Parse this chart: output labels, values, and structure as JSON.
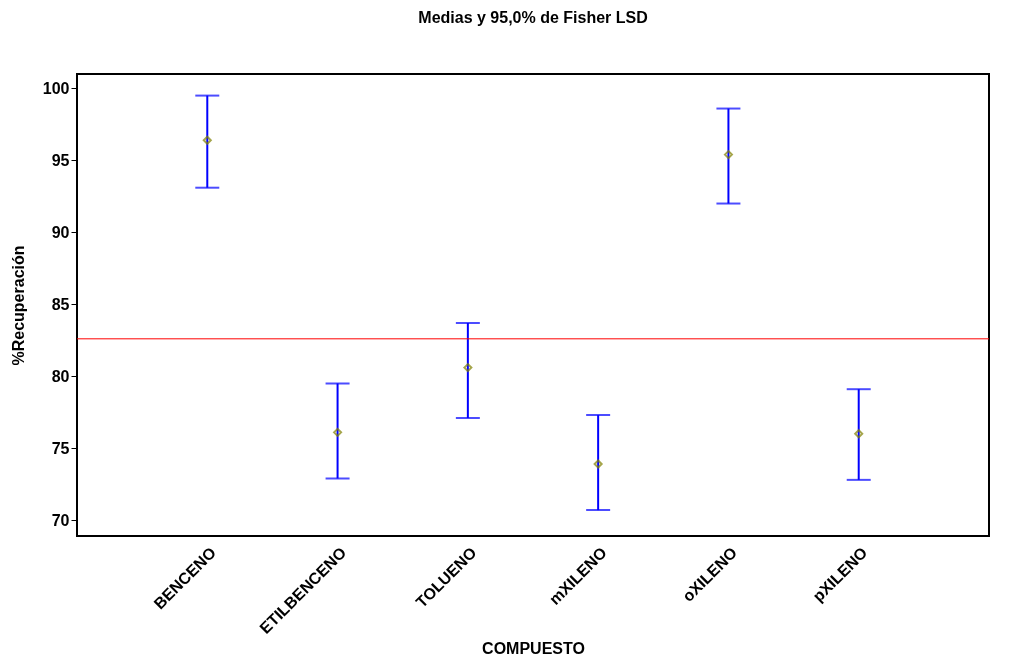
{
  "chart_data": {
    "type": "scatter",
    "title": "Medias y 95,0% de Fisher LSD",
    "xlabel": "COMPUESTO",
    "ylabel": "%Recuperación",
    "categories": [
      "BENCENO",
      "ETILBENCENO",
      "TOLUENO",
      "mXILENO",
      "oXILENO",
      "pXILENO"
    ],
    "series": [
      {
        "color": "#808000",
        "values": [
          96.4,
          76.1,
          80.6,
          73.9,
          95.4,
          76.0
        ],
        "errors": [
          [
            93.1,
            99.5
          ],
          [
            72.9,
            79.5
          ],
          [
            77.1,
            83.7
          ],
          [
            70.7,
            77.3
          ],
          [
            92.0,
            98.6
          ],
          [
            72.8,
            79.1
          ]
        ]
      }
    ],
    "marker": "diamond",
    "ylim": [
      68.9,
      101.0
    ],
    "yticks": [
      70,
      75,
      80,
      85,
      90,
      95,
      100
    ],
    "grid": false,
    "ref_lines": [
      {
        "axis": "y",
        "value": 82.6,
        "color": "#ff0000"
      }
    ]
  }
}
